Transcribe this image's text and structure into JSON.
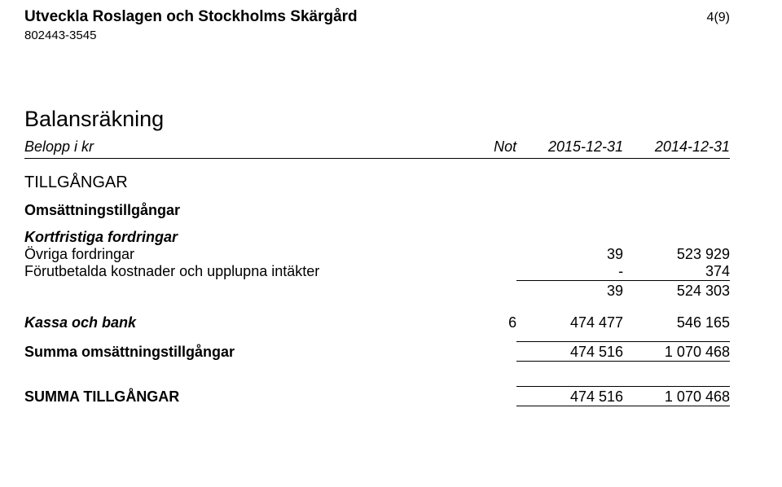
{
  "header": {
    "org_name": "Utveckla Roslagen och Stockholms Skärgård",
    "org_id": "802443-3545",
    "page_num": "4(9)"
  },
  "table": {
    "title": "Balansräkning",
    "columns": {
      "label": "Belopp i kr",
      "not": "Not",
      "period_a": "2015-12-31",
      "period_b": "2014-12-31"
    },
    "section_h2": "TILLGÅNGAR",
    "section_h3": "Omsättningstillgångar",
    "section_h4": "Kortfristiga fordringar",
    "rows": {
      "ovriga_fordringar": {
        "label": "Övriga fordringar",
        "a": "39",
        "b": "523 929"
      },
      "forutbetalda": {
        "label": "Förutbetalda kostnader och upplupna intäkter",
        "a": "-",
        "b": "374"
      },
      "subtotal1": {
        "a": "39",
        "b": "524 303"
      },
      "kassa_bank": {
        "label": "Kassa och bank",
        "not": "6",
        "a": "474 477",
        "b": "546 165"
      },
      "summa_oms": {
        "label": "Summa omsättningstillgångar",
        "a": "474 516",
        "b": "1 070 468"
      },
      "summa_tillg": {
        "label": "SUMMA TILLGÅNGAR",
        "a": "474 516",
        "b": "1 070 468"
      }
    }
  }
}
